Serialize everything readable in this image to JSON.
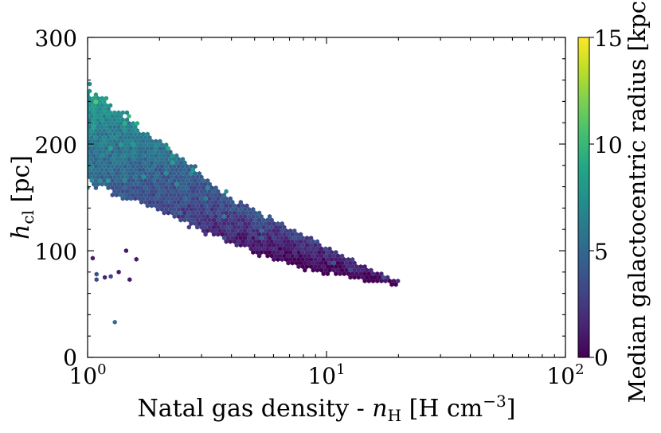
{
  "chart_data": {
    "type": "heatmap",
    "subtype": "hexbin-scatter",
    "x": {
      "label_main": "Natal gas density - ",
      "label_var": "n",
      "label_var_sub": "H",
      "label_units": " [H cm",
      "label_units_sup": "−3",
      "label_units_close": "]",
      "scale": "log",
      "range": [
        1,
        100
      ],
      "ticks": [
        {
          "value": 1,
          "base": "10",
          "exp": "0"
        },
        {
          "value": 10,
          "base": "10",
          "exp": "1"
        },
        {
          "value": 100,
          "base": "10",
          "exp": "2"
        }
      ]
    },
    "y": {
      "label_var": "h",
      "label_var_sub": "cl",
      "label_units": " [pc]",
      "scale": "linear",
      "range": [
        0,
        300
      ],
      "ticks": [
        "0",
        "100",
        "200",
        "300"
      ]
    },
    "colorbar": {
      "label": "Median galactocentric radius [kpc]",
      "colormap": "viridis",
      "range": [
        0,
        15
      ],
      "ticks": [
        "0",
        "5",
        "10",
        "15"
      ]
    },
    "trend": {
      "description_points": [
        {
          "x": 1.0,
          "y_upper": 255,
          "y_lower": 160,
          "color_value": 6.5
        },
        {
          "x": 2.0,
          "y_upper": 205,
          "y_lower": 135,
          "color_value": 4.5
        },
        {
          "x": 4.0,
          "y_upper": 150,
          "y_lower": 105,
          "color_value": 2.5
        },
        {
          "x": 8.0,
          "y_upper": 115,
          "y_lower": 82,
          "color_value": 1.2
        },
        {
          "x": 15.0,
          "y_upper": 85,
          "y_lower": 70,
          "color_value": 0.6
        },
        {
          "x": 20.0,
          "y_upper": 72,
          "y_lower": 68,
          "color_value": 0.5
        }
      ]
    },
    "outliers": [
      {
        "x": 1.05,
        "y": 93,
        "c": 1.0
      },
      {
        "x": 1.09,
        "y": 78,
        "c": 3.5
      },
      {
        "x": 1.09,
        "y": 73,
        "c": 3.5
      },
      {
        "x": 1.18,
        "y": 75,
        "c": 1.5
      },
      {
        "x": 1.25,
        "y": 76,
        "c": 3.0
      },
      {
        "x": 1.35,
        "y": 80,
        "c": 1.0
      },
      {
        "x": 1.5,
        "y": 73,
        "c": 1.0
      },
      {
        "x": 1.3,
        "y": 33,
        "c": 5.5
      },
      {
        "x": 1.45,
        "y": 100,
        "c": 1.0
      },
      {
        "x": 1.6,
        "y": 92,
        "c": 1.0
      }
    ]
  }
}
